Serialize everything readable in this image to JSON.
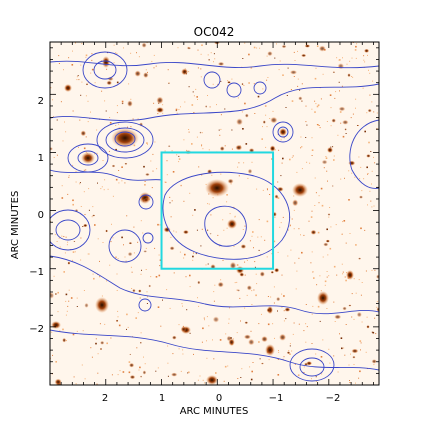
{
  "title": "OC042",
  "x_axis": {
    "label": "ARC MINUTES",
    "ticks": [
      "2",
      "1",
      "0",
      "−1",
      "−2"
    ],
    "range": [
      3.0,
      -2.9
    ]
  },
  "y_axis": {
    "label": "ARC MINUTES",
    "ticks": [
      "2",
      "1",
      "0",
      "−1",
      "−2"
    ],
    "range": [
      -3.0,
      2.9
    ]
  },
  "colors": {
    "contour": "#3a47c8",
    "highlight_box": "#22d8e0",
    "sources": "#c85a12",
    "background": "#fff6ec"
  },
  "highlight_box_arcmin": {
    "x": [
      1.0,
      -1.0
    ],
    "y": [
      -1.0,
      1.0
    ]
  }
}
